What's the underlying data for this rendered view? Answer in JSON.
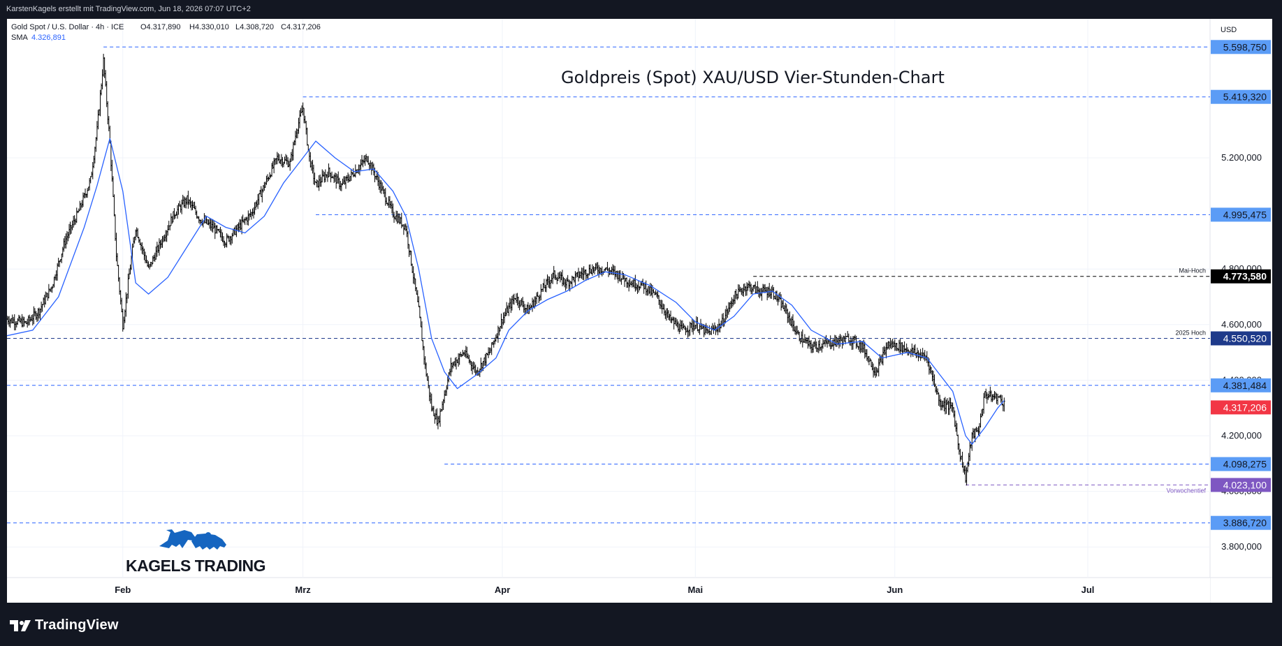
{
  "header": {
    "attribution": "KarstenKagels erstellt mit TradingView.com, Jun 18, 2026 07:07 UTC+2"
  },
  "legend": {
    "symbol": "Gold Spot / U.S. Dollar · 4h · ICE",
    "open": "O4.317,890",
    "high": "H4.330,010",
    "low": "L4.308,720",
    "close": "C4.317,206",
    "sma_label": "SMA",
    "sma_value": "4.326,891"
  },
  "currency": "USD",
  "footer": {
    "brand": "TradingView"
  },
  "watermark": {
    "brand": "KAGELS TRADING"
  },
  "colors": {
    "candle": "#000000",
    "sma": "#2962ff",
    "level_line": "#2962ff",
    "level_badge": "#5b9cf6",
    "last_price_badge": "#f23645",
    "mai_hoch_badge": "#000000",
    "hoch_2025_badge": "#1e3a8a",
    "vorwochentief_badge": "#7e57c2",
    "logo_blue": "#1565c0"
  },
  "chart_data": {
    "type": "candlestick",
    "title": "Goldpreis (Spot) XAU/USD Vier-Stunden-Chart",
    "ylim": [
      3690000,
      5700000
    ],
    "y_ticks": [
      {
        "value": 5200000,
        "label": "5.200,000"
      },
      {
        "value": 4800000,
        "label": "4.800,000"
      },
      {
        "value": 4600000,
        "label": "4.600,000"
      },
      {
        "value": 4400000,
        "label": "4.400,000"
      },
      {
        "value": 4200000,
        "label": "4.200,000"
      },
      {
        "value": 4000000,
        "label": "4.000,000"
      },
      {
        "value": 3800000,
        "label": "3.800,000"
      }
    ],
    "x_ticks": [
      "Feb",
      "Mrz",
      "Apr",
      "Mai",
      "Jun",
      "Jul"
    ],
    "x_tick_dates": [
      "2026-02-01",
      "2026-03-01",
      "2026-04-01",
      "2026-05-01",
      "2026-06-01",
      "2026-07-01"
    ],
    "x_range": [
      "2026-01-14",
      "2026-07-20"
    ],
    "horizontal_levels": [
      {
        "value": 5598750,
        "label": "5.598,750",
        "start_date": "2026-01-29",
        "style": "blue"
      },
      {
        "value": 5419320,
        "label": "5.419,320",
        "start_date": "2026-03-01",
        "style": "blue"
      },
      {
        "value": 4995475,
        "label": "4.995,475",
        "start_date": "2026-03-03",
        "style": "blue"
      },
      {
        "value": 4773580,
        "label": "4.773,580",
        "start_date": "2026-05-10",
        "style": "black",
        "tag": "Mai-Hoch"
      },
      {
        "value": 4550520,
        "label": "4.550,520",
        "start_date": "2026-01-14",
        "style": "navy",
        "tag": "2025 Hoch"
      },
      {
        "value": 4381484,
        "label": "4.381,484",
        "start_date": "2026-01-14",
        "style": "blue"
      },
      {
        "value": 4098275,
        "label": "4.098,275",
        "start_date": "2026-03-23",
        "style": "blue"
      },
      {
        "value": 4023100,
        "label": "4.023,100",
        "start_date": "2026-06-12",
        "style": "purple",
        "tag": "Vorwochentief"
      },
      {
        "value": 3886720,
        "label": "3.886,720",
        "start_date": "2026-01-14",
        "style": "blue"
      }
    ],
    "last_price": {
      "value": 4317206,
      "label": "4.317,206"
    },
    "series": [
      {
        "name": "Gold Spot / U.S. Dollar",
        "kind": "close",
        "points": [
          [
            "2026-01-14",
            4620000
          ],
          [
            "2026-01-17",
            4605000
          ],
          [
            "2026-01-19",
            4650000
          ],
          [
            "2026-01-21",
            4740000
          ],
          [
            "2026-01-23",
            4900000
          ],
          [
            "2026-01-25",
            5000000
          ],
          [
            "2026-01-27",
            5120000
          ],
          [
            "2026-01-28",
            5300000
          ],
          [
            "2026-01-29",
            5550000
          ],
          [
            "2026-01-30",
            5250000
          ],
          [
            "2026-01-31",
            4850000
          ],
          [
            "2026-02-01",
            4600000
          ],
          [
            "2026-02-02",
            4780000
          ],
          [
            "2026-02-03",
            4950000
          ],
          [
            "2026-02-05",
            4800000
          ],
          [
            "2026-02-07",
            4900000
          ],
          [
            "2026-02-09",
            5000000
          ],
          [
            "2026-02-11",
            5050000
          ],
          [
            "2026-02-13",
            4980000
          ],
          [
            "2026-02-15",
            4950000
          ],
          [
            "2026-02-17",
            4900000
          ],
          [
            "2026-02-19",
            4950000
          ],
          [
            "2026-02-21",
            5000000
          ],
          [
            "2026-02-23",
            5100000
          ],
          [
            "2026-02-25",
            5200000
          ],
          [
            "2026-02-27",
            5180000
          ],
          [
            "2026-02-28",
            5300000
          ],
          [
            "2026-03-01",
            5380000
          ],
          [
            "2026-03-02",
            5200000
          ],
          [
            "2026-03-03",
            5100000
          ],
          [
            "2026-03-05",
            5150000
          ],
          [
            "2026-03-07",
            5100000
          ],
          [
            "2026-03-09",
            5150000
          ],
          [
            "2026-03-11",
            5200000
          ],
          [
            "2026-03-13",
            5100000
          ],
          [
            "2026-03-15",
            5000000
          ],
          [
            "2026-03-17",
            4950000
          ],
          [
            "2026-03-18",
            4800000
          ],
          [
            "2026-03-19",
            4650000
          ],
          [
            "2026-03-20",
            4450000
          ],
          [
            "2026-03-21",
            4300000
          ],
          [
            "2026-03-22",
            4250000
          ],
          [
            "2026-03-23",
            4350000
          ],
          [
            "2026-03-24",
            4450000
          ],
          [
            "2026-03-26",
            4500000
          ],
          [
            "2026-03-28",
            4430000
          ],
          [
            "2026-03-30",
            4500000
          ],
          [
            "2026-04-01",
            4620000
          ],
          [
            "2026-04-03",
            4700000
          ],
          [
            "2026-04-05",
            4650000
          ],
          [
            "2026-04-07",
            4720000
          ],
          [
            "2026-04-09",
            4780000
          ],
          [
            "2026-04-11",
            4750000
          ],
          [
            "2026-04-13",
            4780000
          ],
          [
            "2026-04-15",
            4800000
          ],
          [
            "2026-04-17",
            4800000
          ],
          [
            "2026-04-19",
            4780000
          ],
          [
            "2026-04-21",
            4750000
          ],
          [
            "2026-04-23",
            4740000
          ],
          [
            "2026-04-25",
            4700000
          ],
          [
            "2026-04-27",
            4620000
          ],
          [
            "2026-04-29",
            4580000
          ],
          [
            "2026-05-01",
            4600000
          ],
          [
            "2026-05-03",
            4570000
          ],
          [
            "2026-05-05",
            4600000
          ],
          [
            "2026-05-07",
            4700000
          ],
          [
            "2026-05-09",
            4740000
          ],
          [
            "2026-05-11",
            4720000
          ],
          [
            "2026-05-13",
            4720000
          ],
          [
            "2026-05-15",
            4650000
          ],
          [
            "2026-05-17",
            4560000
          ],
          [
            "2026-05-19",
            4520000
          ],
          [
            "2026-05-21",
            4530000
          ],
          [
            "2026-05-23",
            4540000
          ],
          [
            "2026-05-25",
            4550000
          ],
          [
            "2026-05-27",
            4520000
          ],
          [
            "2026-05-29",
            4430000
          ],
          [
            "2026-05-31",
            4530000
          ],
          [
            "2026-06-02",
            4520000
          ],
          [
            "2026-06-04",
            4500000
          ],
          [
            "2026-06-06",
            4480000
          ],
          [
            "2026-06-08",
            4320000
          ],
          [
            "2026-06-10",
            4300000
          ],
          [
            "2026-06-11",
            4150000
          ],
          [
            "2026-06-12",
            4050000
          ],
          [
            "2026-06-13",
            4200000
          ],
          [
            "2026-06-14",
            4220000
          ],
          [
            "2026-06-15",
            4350000
          ],
          [
            "2026-06-16",
            4340000
          ],
          [
            "2026-06-17",
            4340000
          ],
          [
            "2026-06-18",
            4317206
          ]
        ]
      },
      {
        "name": "SMA",
        "kind": "line",
        "points": [
          [
            "2026-01-14",
            4560000
          ],
          [
            "2026-01-18",
            4580000
          ],
          [
            "2026-01-22",
            4700000
          ],
          [
            "2026-01-26",
            4950000
          ],
          [
            "2026-01-28",
            5100000
          ],
          [
            "2026-01-30",
            5270000
          ],
          [
            "2026-02-01",
            5080000
          ],
          [
            "2026-02-03",
            4750000
          ],
          [
            "2026-02-05",
            4710000
          ],
          [
            "2026-02-08",
            4770000
          ],
          [
            "2026-02-11",
            4880000
          ],
          [
            "2026-02-14",
            4990000
          ],
          [
            "2026-02-17",
            4950000
          ],
          [
            "2026-02-20",
            4930000
          ],
          [
            "2026-02-23",
            4990000
          ],
          [
            "2026-02-26",
            5110000
          ],
          [
            "2026-03-01",
            5200000
          ],
          [
            "2026-03-03",
            5260000
          ],
          [
            "2026-03-06",
            5200000
          ],
          [
            "2026-03-09",
            5150000
          ],
          [
            "2026-03-12",
            5160000
          ],
          [
            "2026-03-15",
            5080000
          ],
          [
            "2026-03-17",
            4990000
          ],
          [
            "2026-03-19",
            4800000
          ],
          [
            "2026-03-21",
            4550000
          ],
          [
            "2026-03-23",
            4430000
          ],
          [
            "2026-03-25",
            4370000
          ],
          [
            "2026-03-28",
            4420000
          ],
          [
            "2026-03-31",
            4480000
          ],
          [
            "2026-04-02",
            4580000
          ],
          [
            "2026-04-05",
            4650000
          ],
          [
            "2026-04-08",
            4690000
          ],
          [
            "2026-04-11",
            4720000
          ],
          [
            "2026-04-14",
            4760000
          ],
          [
            "2026-04-17",
            4790000
          ],
          [
            "2026-04-20",
            4780000
          ],
          [
            "2026-04-24",
            4740000
          ],
          [
            "2026-04-28",
            4680000
          ],
          [
            "2026-05-01",
            4610000
          ],
          [
            "2026-05-04",
            4580000
          ],
          [
            "2026-05-07",
            4630000
          ],
          [
            "2026-05-10",
            4710000
          ],
          [
            "2026-05-13",
            4720000
          ],
          [
            "2026-05-16",
            4670000
          ],
          [
            "2026-05-19",
            4580000
          ],
          [
            "2026-05-23",
            4530000
          ],
          [
            "2026-05-27",
            4540000
          ],
          [
            "2026-05-30",
            4480000
          ],
          [
            "2026-06-03",
            4500000
          ],
          [
            "2026-06-06",
            4480000
          ],
          [
            "2026-06-08",
            4420000
          ],
          [
            "2026-06-10",
            4360000
          ],
          [
            "2026-06-12",
            4200000
          ],
          [
            "2026-06-13",
            4170000
          ],
          [
            "2026-06-15",
            4230000
          ],
          [
            "2026-06-17",
            4300000
          ],
          [
            "2026-06-18",
            4326891
          ]
        ]
      }
    ]
  }
}
